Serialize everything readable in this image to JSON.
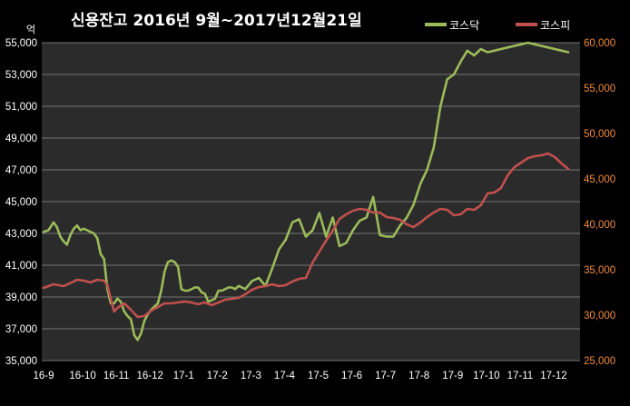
{
  "chart_data": {
    "type": "line",
    "title": "신용잔고 2016년 9월~2017년12월21일",
    "ylabel": "억",
    "legend_position": "top-right",
    "grid": true,
    "colors": {
      "background": "#000000",
      "plot_background": "#2a2a2a",
      "grid": "#909090",
      "left_ticks": "#ffffff",
      "right_ticks": "#f08a3c"
    },
    "x_categories": [
      "16-9",
      "16-10",
      "16-11",
      "16-12",
      "17-1",
      "17-2",
      "17-3",
      "17-4",
      "17-5",
      "17-6",
      "17-7",
      "17-8",
      "17-9",
      "17-10",
      "17-11",
      "17-12"
    ],
    "x_labels": [
      "16-9",
      "16-10",
      "16-11",
      "16-12",
      "17-1",
      "17-2",
      "17-3",
      "17-4",
      "17-5",
      "17-6",
      "17-7",
      "17-8",
      "17-9",
      "17-10",
      "17-11",
      "17-12"
    ],
    "y_left": {
      "min": 35000,
      "max": 55000,
      "ticks": [
        "35,000",
        "37,000",
        "39,000",
        "41,000",
        "43,000",
        "45,000",
        "47,000",
        "49,000",
        "51,000",
        "53,000",
        "55,000"
      ]
    },
    "y_right": {
      "min": 25000,
      "max": 60000,
      "ticks": [
        "25,000",
        "30,000",
        "35,000",
        "40,000",
        "45,000",
        "50,000",
        "55,000",
        "60,000"
      ]
    },
    "series": [
      {
        "name": "코스닥",
        "axis": "left",
        "color": "#9bbb59",
        "x": [
          0,
          0.15,
          0.3,
          0.4,
          0.5,
          0.6,
          0.7,
          0.8,
          0.9,
          1.0,
          1.1,
          1.2,
          1.3,
          1.4,
          1.5,
          1.6,
          1.7,
          1.8,
          1.9,
          2.0,
          2.1,
          2.2,
          2.3,
          2.4,
          2.5,
          2.6,
          2.7,
          2.8,
          2.9,
          3.0,
          3.1,
          3.2,
          3.3,
          3.4,
          3.5,
          3.6,
          3.7,
          3.8,
          3.9,
          4.0,
          4.1,
          4.2,
          4.3,
          4.4,
          4.5,
          4.6,
          4.7,
          4.8,
          4.9,
          5.0,
          5.1,
          5.2,
          5.3,
          5.4,
          5.5,
          5.6,
          5.7,
          5.8,
          5.9,
          6.0,
          6.2,
          6.4,
          6.6,
          6.8,
          7.0,
          7.2,
          7.4,
          7.6,
          7.8,
          8.0,
          8.2,
          8.4,
          8.6,
          8.8,
          9.0,
          9.2,
          9.4,
          9.6,
          9.8,
          10.0,
          10.2,
          10.4,
          10.6,
          10.8,
          11.0,
          11.2,
          11.4,
          11.6,
          11.8,
          12.0,
          12.2,
          12.4,
          12.6,
          12.8,
          13.0,
          13.2,
          13.4,
          13.6,
          13.8,
          14.0,
          14.2,
          14.4,
          14.6,
          14.8,
          15.0,
          15.2,
          15.4,
          15.6
        ],
        "values": [
          43100,
          43200,
          43700,
          43400,
          42800,
          42500,
          42300,
          42900,
          43300,
          43500,
          43200,
          43300,
          43200,
          43100,
          43000,
          42700,
          41700,
          41400,
          39500,
          38600,
          38600,
          38900,
          38700,
          38100,
          37800,
          37600,
          36600,
          36300,
          36700,
          37500,
          37900,
          38200,
          38400,
          38600,
          39400,
          40600,
          41200,
          41300,
          41200,
          40900,
          39500,
          39400,
          39400,
          39500,
          39600,
          39600,
          39300,
          39200,
          38700,
          38800,
          38900,
          39400,
          39400,
          39500,
          39600,
          39600,
          39500,
          39700,
          39600,
          39500,
          40000,
          40200,
          39700,
          40800,
          42000,
          42600,
          43700,
          43900,
          42800,
          43200,
          44300,
          42800,
          44000,
          42200,
          42400,
          43200,
          43800,
          44000,
          45300,
          42900,
          42800,
          42800,
          43500,
          44000,
          44800,
          46100,
          47000,
          48400,
          51000,
          52700,
          53000,
          53800,
          54500,
          54200,
          54600,
          54400,
          54500,
          54600,
          54700,
          54800,
          54900,
          55000,
          54900,
          54800,
          54700,
          54600,
          54500,
          54400
        ],
        "notes_on_axis": "x in month index where 0 = 16-9 (start), values in 억 on left axis"
      },
      {
        "name": "코스피",
        "axis": "right",
        "color": "#c0504d",
        "x": [
          0,
          0.3,
          0.6,
          0.9,
          1.0,
          1.2,
          1.4,
          1.6,
          1.8,
          1.9,
          2.0,
          2.1,
          2.2,
          2.4,
          2.6,
          2.8,
          3.0,
          3.2,
          3.4,
          3.6,
          3.8,
          4.0,
          4.2,
          4.4,
          4.6,
          4.8,
          5.0,
          5.2,
          5.4,
          5.6,
          5.8,
          6.0,
          6.2,
          6.4,
          6.6,
          6.8,
          7.0,
          7.2,
          7.4,
          7.6,
          7.8,
          8.0,
          8.2,
          8.4,
          8.6,
          8.8,
          9.0,
          9.2,
          9.4,
          9.6,
          9.8,
          10.0,
          10.2,
          10.4,
          10.6,
          10.8,
          11.0,
          11.2,
          11.4,
          11.6,
          11.8,
          12.0,
          12.2,
          12.4,
          12.6,
          12.8,
          13.0,
          13.2,
          13.4,
          13.6,
          13.8,
          14.0,
          14.2,
          14.4,
          14.6,
          14.8,
          15.0,
          15.2,
          15.4,
          15.6
        ],
        "values": [
          33000,
          33400,
          33200,
          33700,
          33900,
          33800,
          33600,
          33900,
          33800,
          33300,
          31800,
          30400,
          30800,
          31300,
          30600,
          29800,
          29900,
          30500,
          30900,
          31300,
          31300,
          31400,
          31500,
          31400,
          31200,
          31400,
          31100,
          31400,
          31700,
          31800,
          31900,
          32300,
          32800,
          33100,
          33200,
          33400,
          33200,
          33300,
          33700,
          34000,
          34100,
          35800,
          37000,
          38200,
          39300,
          40600,
          41100,
          41500,
          41700,
          41600,
          41300,
          41300,
          40800,
          40700,
          40500,
          40000,
          39700,
          40200,
          40800,
          41300,
          41700,
          41600,
          41000,
          41100,
          41700,
          41600,
          42100,
          43400,
          43500,
          44000,
          45400,
          46300,
          46800,
          47300,
          47500,
          47600,
          47800,
          47400,
          46700,
          46100
        ],
        "notes_on_axis": "x in month index where 0 = 16-9 (start), values in 억 on right axis"
      }
    ]
  }
}
